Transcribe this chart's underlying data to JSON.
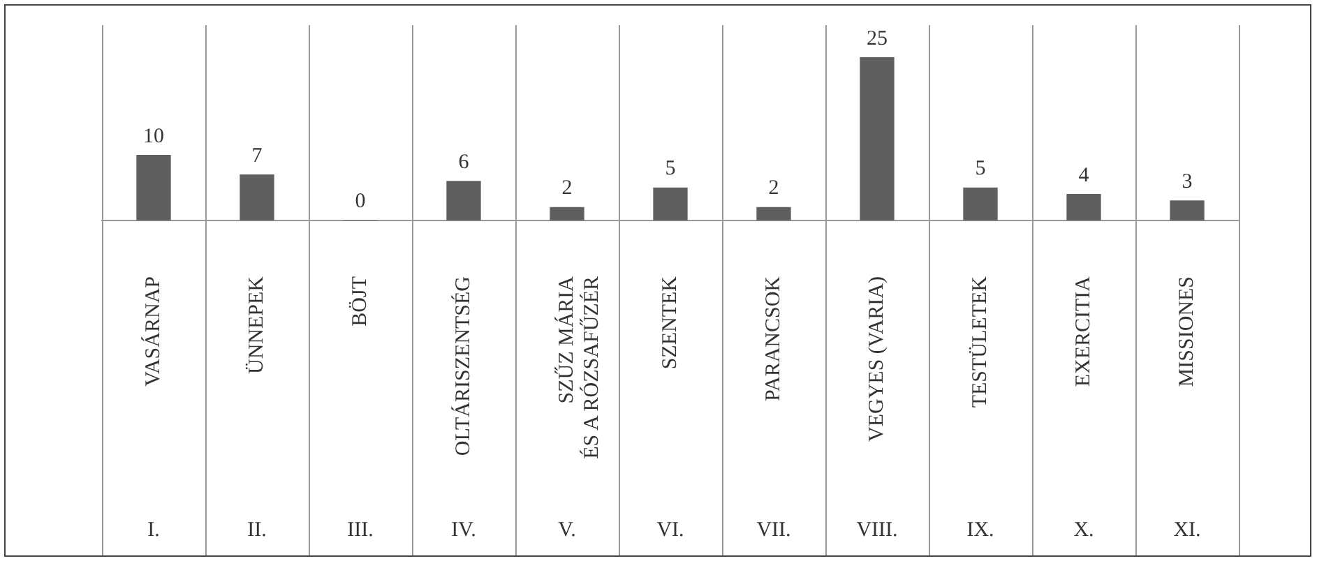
{
  "chart_data": {
    "type": "bar",
    "categories": [
      "VASÁRNAP",
      "ÜNNEPEK",
      "BÖJT",
      "OLTÁRISZENTSÉG",
      "SZŰZ MÁRIA\nÉS A RÓZSAFŰZÉR",
      "SZENTEK",
      "PARANCSOK",
      "VEGYES (VARIA)",
      "TESTÜLETEK",
      "EXERCITIA",
      "MISSIONES"
    ],
    "values": [
      10,
      7,
      0,
      6,
      2,
      5,
      2,
      25,
      5,
      4,
      3
    ],
    "color": "#5f5f5f",
    "data_labels": true,
    "grid": false,
    "legend": false,
    "annotations": [
      "I.",
      "II.",
      "III.",
      "IV.",
      "V.",
      "VI.",
      "VII.",
      "VIII.",
      "IX.",
      "X.",
      "XI."
    ]
  }
}
